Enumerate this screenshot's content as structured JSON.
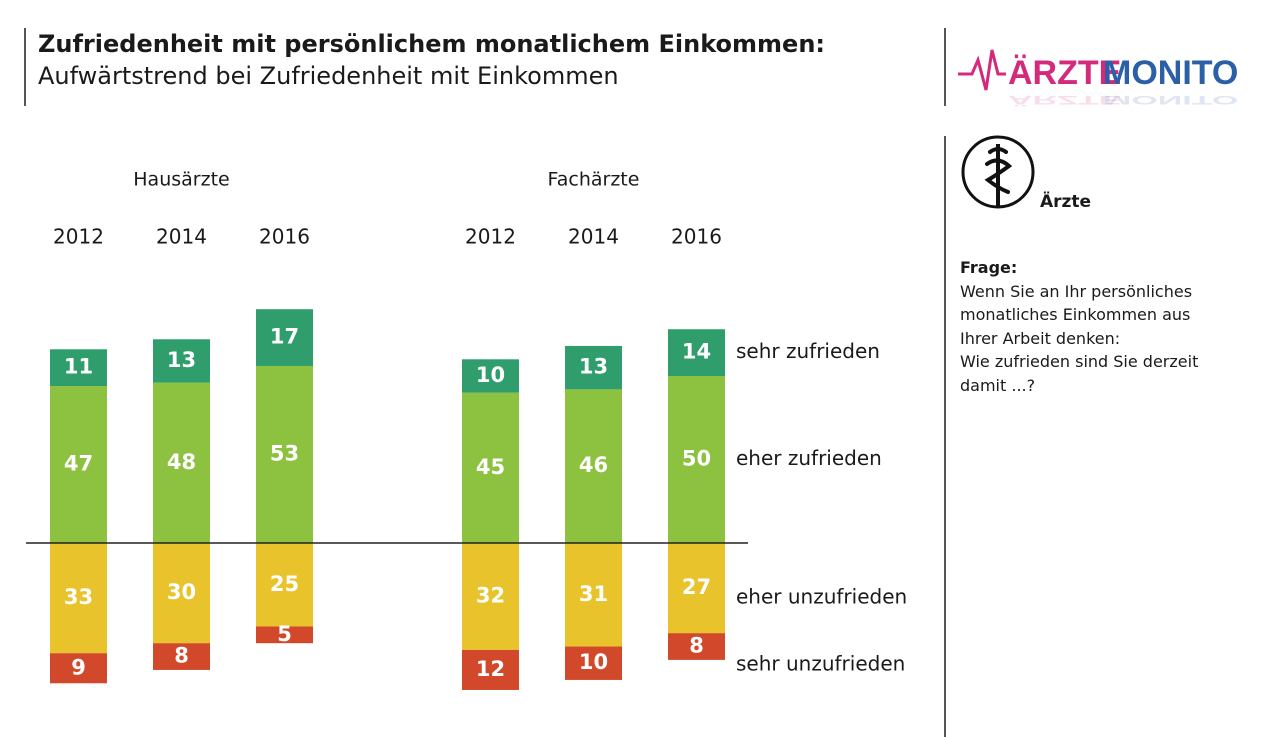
{
  "header": {
    "title": "Zufriedenheit mit persönlichem monatlichem Einkommen:",
    "subtitle": "Aufwärtstrend bei Zufriedenheit mit Einkommen"
  },
  "logo": {
    "part1": "ÄRZTE",
    "part2": "MONITOR",
    "color1": "#d42a7c",
    "color2": "#2b5fa8"
  },
  "badge": {
    "label": "Ärzte",
    "icon": "aesculapian-staff-icon"
  },
  "frage": {
    "title": "Frage:",
    "lines": [
      "Wenn Sie an Ihr persönliches",
      "monatliches Einkommen aus",
      "Ihrer Arbeit denken:",
      "Wie zufrieden sind Sie derzeit",
      "damit ...?"
    ]
  },
  "chart_data": {
    "type": "bar",
    "stacking": "diverging",
    "groups": [
      {
        "name": "Hausärzte",
        "categories": [
          "2012",
          "2014",
          "2016"
        ]
      },
      {
        "name": "Fachärzte",
        "categories": [
          "2012",
          "2014",
          "2016"
        ]
      }
    ],
    "series": [
      {
        "name": "sehr zufrieden",
        "side": "positive",
        "color": "#2f9e6c",
        "values": [
          [
            11,
            13,
            17
          ],
          [
            10,
            13,
            14
          ]
        ]
      },
      {
        "name": "eher zufrieden",
        "side": "positive",
        "color": "#8dc240",
        "values": [
          [
            47,
            48,
            53
          ],
          [
            45,
            46,
            50
          ]
        ]
      },
      {
        "name": "eher unzufrieden",
        "side": "negative",
        "color": "#e9c32c",
        "values": [
          [
            33,
            30,
            25
          ],
          [
            32,
            31,
            27
          ]
        ]
      },
      {
        "name": "sehr unzufrieden",
        "side": "negative",
        "color": "#d2482a",
        "values": [
          [
            9,
            8,
            5
          ],
          [
            12,
            10,
            8
          ]
        ]
      }
    ],
    "legend_placement": "right",
    "grid": false
  }
}
